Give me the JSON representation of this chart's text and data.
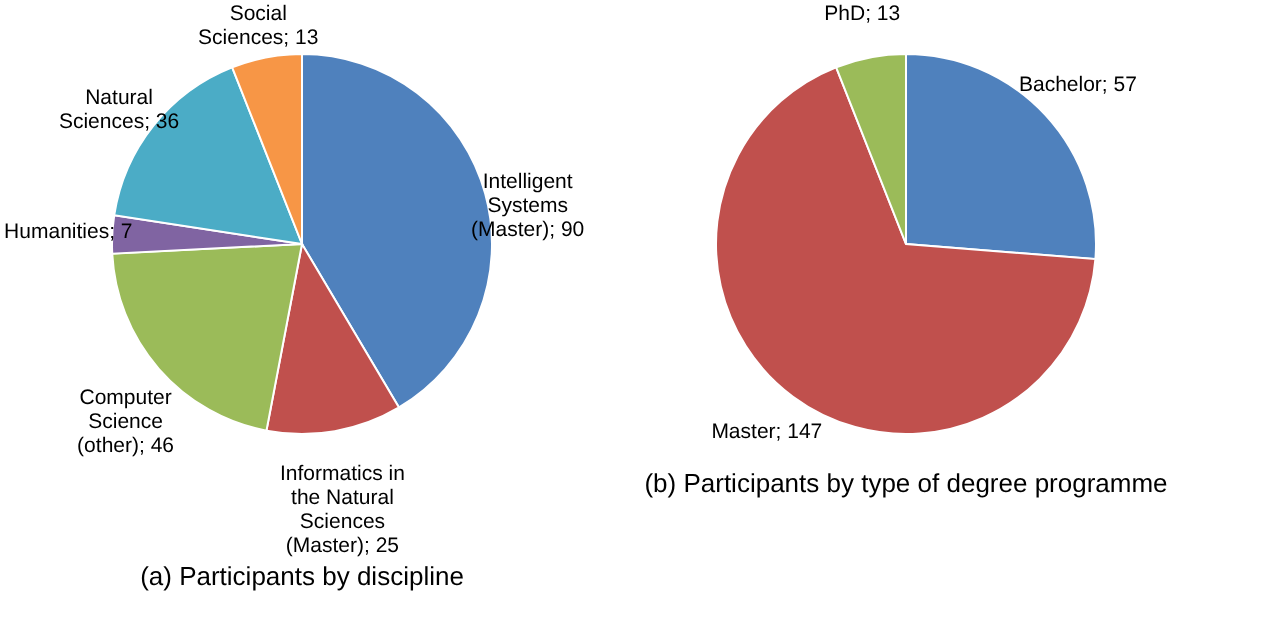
{
  "chart_data": [
    {
      "type": "pie",
      "title": "(a) Participants by discipline",
      "categories": [
        "Intelligent Systems (Master); 90",
        "Informatics in the Natural Sciences (Master); 25",
        "Computer Science (other); 46",
        "Humanities; 7",
        "Natural Sciences; 36",
        "Social Sciences; 13"
      ],
      "values": [
        90,
        25,
        46,
        7,
        36,
        13
      ],
      "colors": [
        "#4f81bd",
        "#c0504d",
        "#9bbb59",
        "#8064a2",
        "#4bacc6",
        "#f79646"
      ]
    },
    {
      "type": "pie",
      "title": "(b) Participants by type of degree programme",
      "categories": [
        "Bachelor; 57",
        "Master; 147",
        "PhD; 13"
      ],
      "values": [
        57,
        147,
        13
      ],
      "colors": [
        "#4f81bd",
        "#c0504d",
        "#9bbb59"
      ]
    }
  ]
}
